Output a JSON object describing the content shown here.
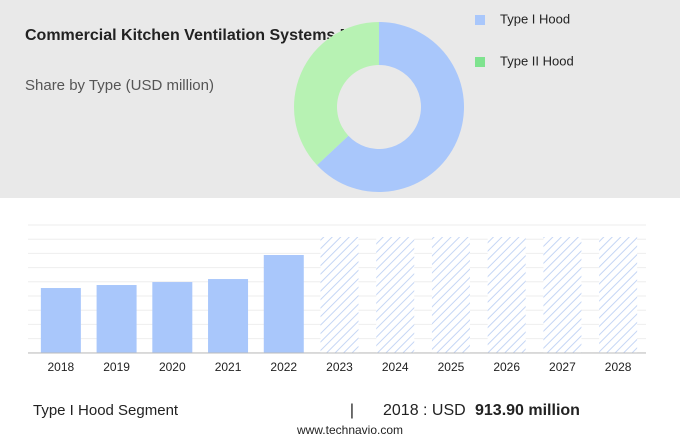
{
  "chart_data": [
    {
      "type": "pie",
      "title": "Commercial Kitchen Ventilation Systems Market",
      "subtitle": "Share by Type (USD million)",
      "categories": [
        "Type I Hood",
        "Type II Hood"
      ],
      "values": [
        63,
        37
      ],
      "colors": [
        "#a9c7fb",
        "#b7f2b3"
      ],
      "legend_colors": [
        "#a9c7fb",
        "#7fe38f"
      ],
      "donut": true
    },
    {
      "type": "bar",
      "categories": [
        "2018",
        "2019",
        "2020",
        "2021",
        "2022",
        "2023",
        "2024",
        "2025",
        "2026",
        "2027",
        "2028"
      ],
      "values": [
        913.9,
        956,
        998,
        1040,
        1378,
        null,
        null,
        null,
        null,
        null,
        null
      ],
      "color": "#a9c7fb",
      "ylim": [
        0,
        1800
      ]
    }
  ],
  "footer": {
    "segment": "Type I Hood Segment",
    "separator": "|",
    "prefix": "2018 : USD",
    "amount": "913.90 million",
    "source": "www.technavio.com"
  }
}
